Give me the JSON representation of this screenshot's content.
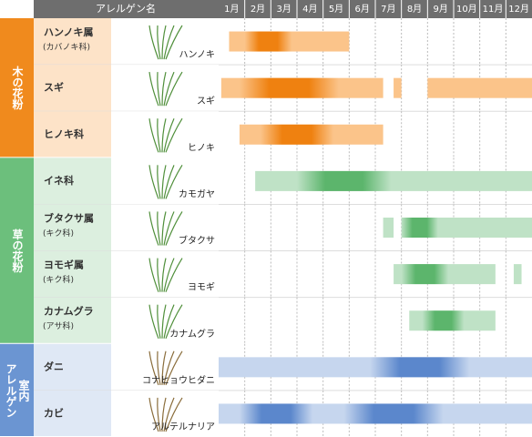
{
  "header": {
    "title": "アレルゲン名",
    "months": [
      "1月",
      "2月",
      "3月",
      "4月",
      "5月",
      "6月",
      "7月",
      "8月",
      "9月",
      "10月",
      "11月",
      "12月"
    ]
  },
  "groups": [
    {
      "label_lines": [
        "木の花粉"
      ],
      "color": "#f08a1d",
      "light": "#fde3c8",
      "bar": "#fbc48a",
      "peak": "#ef8110",
      "rows": [
        {
          "name": "ハンノキ属",
          "sub": "(カバノキ科)",
          "plant": "ハンノキ",
          "spans": [
            [
              1.4,
              6.0
            ]
          ],
          "peaks": [
            [
              2.0,
              3.8
            ]
          ]
        },
        {
          "name": "スギ",
          "plant": "スギ",
          "spans": [
            [
              1.1,
              7.3
            ],
            [
              7.7,
              8.0
            ],
            [
              9.0,
              13.0
            ]
          ],
          "peaks": [
            [
              1.8,
              5.6
            ]
          ]
        },
        {
          "name": "ヒノキ科",
          "plant": "ヒノキ",
          "spans": [
            [
              1.8,
              7.3
            ]
          ],
          "peaks": [
            [
              2.6,
              5.4
            ]
          ]
        }
      ]
    },
    {
      "label_lines": [
        "草の花粉"
      ],
      "color": "#6cbf7c",
      "light": "#dcefdf",
      "bar": "#bfe2c6",
      "peak": "#5cb56c",
      "rows": [
        {
          "name": "イネ科",
          "plant": "カモガヤ",
          "spans": [
            [
              2.4,
              13.0
            ]
          ],
          "peaks": [
            [
              4.0,
              7.6
            ]
          ]
        },
        {
          "name": "ブタクサ属",
          "sub": "(キク科)",
          "plant": "ブタクサ",
          "spans": [
            [
              7.3,
              7.7
            ],
            [
              8.0,
              13.0
            ]
          ],
          "peaks": [
            [
              8.0,
              9.4
            ]
          ]
        },
        {
          "name": "ヨモギ属",
          "sub": "(キク科)",
          "plant": "ヨモギ",
          "spans": [
            [
              7.7,
              11.6
            ],
            [
              12.3,
              12.6
            ]
          ],
          "peaks": [
            [
              8.0,
              9.8
            ]
          ]
        },
        {
          "name": "カナムグラ",
          "sub": "(アサ科)",
          "plant": "カナムグラ",
          "spans": [
            [
              8.3,
              11.6
            ]
          ],
          "peaks": [
            [
              8.8,
              10.4
            ]
          ]
        }
      ]
    },
    {
      "label_lines": [
        "室内",
        "アレルゲン"
      ],
      "color": "#6b95d2",
      "light": "#dfe8f5",
      "bar": "#c6d6ee",
      "peak": "#5b87cc",
      "rows": [
        {
          "name": "ダニ",
          "plant": "コナヒョウヒダニ",
          "spans": [
            [
              1.0,
              13.0
            ]
          ],
          "peaks": [
            [
              6.8,
              10.6
            ]
          ]
        },
        {
          "name": "カビ",
          "plant": "アルテルナリア",
          "spans": [
            [
              1.0,
              13.0
            ]
          ],
          "peaks": [
            [
              1.8,
              4.6
            ],
            [
              5.8,
              9.6
            ]
          ]
        }
      ]
    }
  ]
}
